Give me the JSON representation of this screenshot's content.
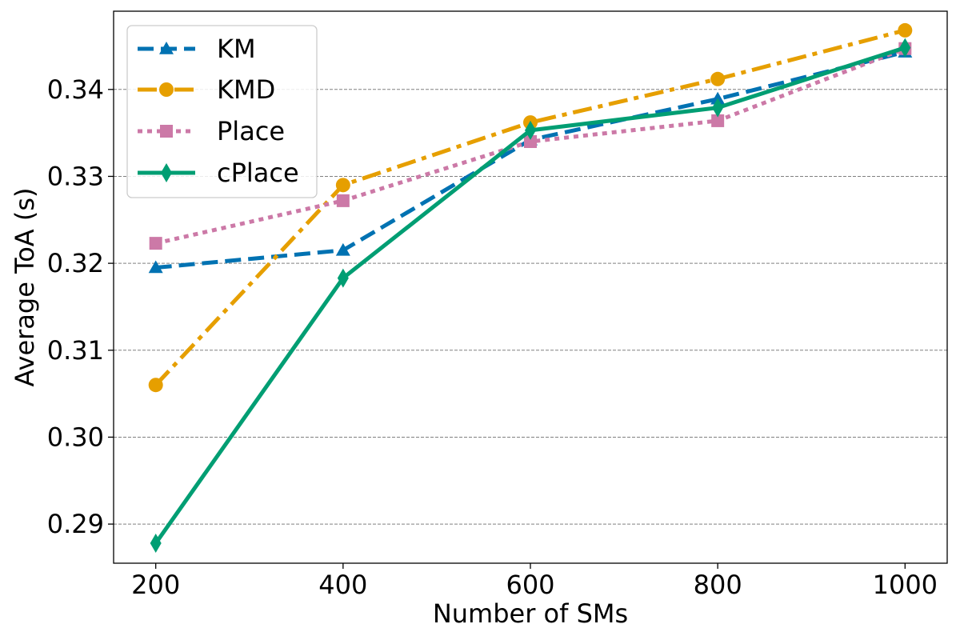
{
  "chart_data": {
    "type": "line",
    "title": "",
    "xlabel": "Number of SMs",
    "ylabel": "Average ToA (s)",
    "x": [
      200,
      400,
      600,
      800,
      1000
    ],
    "xticks": [
      "200",
      "400",
      "600",
      "800",
      "1000"
    ],
    "yticks": [
      "0.29",
      "0.30",
      "0.31",
      "0.32",
      "0.33",
      "0.34"
    ],
    "ytick_values": [
      0.29,
      0.3,
      0.31,
      0.32,
      0.33,
      0.34
    ],
    "xlim": [
      155,
      1045
    ],
    "ylim": [
      0.2855,
      0.349
    ],
    "grid": "y-dashed",
    "legend_position": "top-left",
    "series": [
      {
        "name": "KM",
        "values": [
          0.3195,
          0.3215,
          0.3342,
          0.3389,
          0.3443
        ],
        "color": "#0072b2",
        "linestyle": "dashed",
        "marker": "triangle"
      },
      {
        "name": "KMD",
        "values": [
          0.306,
          0.329,
          0.3362,
          0.3412,
          0.3468
        ],
        "color": "#e69f00",
        "linestyle": "dashdot",
        "marker": "circle"
      },
      {
        "name": "Place",
        "values": [
          0.3223,
          0.3272,
          0.334,
          0.3364,
          0.3447
        ],
        "color": "#cc79a7",
        "linestyle": "dotted",
        "marker": "square"
      },
      {
        "name": "cPlace",
        "values": [
          0.2878,
          0.3183,
          0.3353,
          0.3379,
          0.3448
        ],
        "color": "#009e73",
        "linestyle": "solid",
        "marker": "diamond"
      }
    ]
  }
}
